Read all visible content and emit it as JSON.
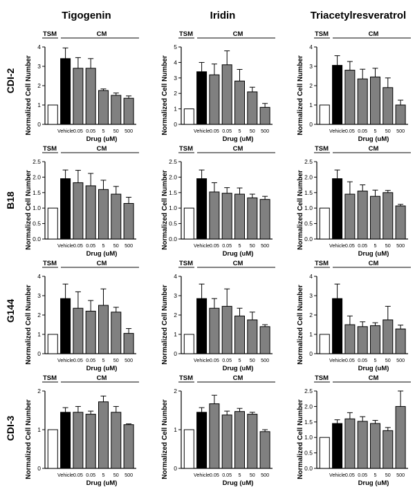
{
  "figure": {
    "columns": [
      "Tigogenin",
      "Iridin",
      "Triacetylresveratrol"
    ],
    "rows": [
      "CDI-2",
      "B18",
      "G144",
      "CDI-3"
    ],
    "ylabel": "Normalized Cell Number",
    "xlabel": "Drug (uM)",
    "group_tsm": "TSM",
    "group_cm": "CM",
    "colors": {
      "tsm": "#ffffff",
      "vehicle": "#000000",
      "drug": "#808080",
      "stroke": "#000000"
    }
  },
  "chart_data": [
    {
      "type": "bar",
      "title": "Tigogenin",
      "row": "CDI-2",
      "categories": [
        "",
        "Vehicle",
        "0.05",
        "0.05",
        "5",
        "50",
        "500"
      ],
      "values": [
        1.0,
        3.4,
        2.9,
        2.9,
        1.75,
        1.5,
        1.35
      ],
      "errors": [
        0,
        0.55,
        0.55,
        0.5,
        0.08,
        0.12,
        0.12
      ],
      "ylim": [
        0,
        4
      ],
      "yticks": [
        "0",
        "1",
        "2",
        "3",
        "4"
      ],
      "ylabel": "Normalized Cell Number",
      "xlabel": "Drug (uM)"
    },
    {
      "type": "bar",
      "title": "Iridin",
      "row": "CDI-2",
      "categories": [
        "",
        "Vehicle",
        "0.05",
        "0.05",
        "5",
        "50",
        "500"
      ],
      "values": [
        1.0,
        3.4,
        3.2,
        3.85,
        2.8,
        2.1,
        1.1
      ],
      "errors": [
        0,
        0.6,
        0.7,
        0.9,
        0.75,
        0.3,
        0.25
      ],
      "ylim": [
        0,
        5
      ],
      "yticks": [
        "0",
        "1",
        "2",
        "3",
        "4",
        "5"
      ],
      "ylabel": "Normalized Cell Number",
      "xlabel": "Drug (uM)"
    },
    {
      "type": "bar",
      "title": "Triacetylresveratrol",
      "row": "CDI-2",
      "categories": [
        "",
        "Vehicle",
        "0.05",
        "0.05",
        "5",
        "50",
        "500"
      ],
      "values": [
        1.0,
        3.05,
        2.8,
        2.35,
        2.45,
        1.9,
        1.0
      ],
      "errors": [
        0,
        0.5,
        0.45,
        0.5,
        0.45,
        0.5,
        0.25
      ],
      "ylim": [
        0,
        4
      ],
      "yticks": [
        "0",
        "1",
        "2",
        "3",
        "4"
      ],
      "ylabel": "Normalized Cell Number",
      "xlabel": "Drug (uM)"
    },
    {
      "type": "bar",
      "title": "Tigogenin",
      "row": "B18",
      "categories": [
        "",
        "Vehicle",
        "0.05",
        "0.05",
        "5",
        "50",
        "500"
      ],
      "values": [
        1.0,
        1.95,
        1.82,
        1.72,
        1.6,
        1.45,
        1.15
      ],
      "errors": [
        0,
        0.28,
        0.4,
        0.4,
        0.3,
        0.25,
        0.2
      ],
      "ylim": [
        0,
        2.5
      ],
      "yticks": [
        "0.0",
        "0.5",
        "1.0",
        "1.5",
        "2.0",
        "2.5"
      ],
      "ylabel": "Normalized Cell Number",
      "xlabel": "Drug (uM)"
    },
    {
      "type": "bar",
      "title": "Iridin",
      "row": "B18",
      "categories": [
        "",
        "Vehicle",
        "0.05",
        "0.05",
        "5",
        "50",
        "500"
      ],
      "values": [
        1.0,
        1.95,
        1.52,
        1.48,
        1.45,
        1.33,
        1.28
      ],
      "errors": [
        0,
        0.28,
        0.3,
        0.18,
        0.2,
        0.12,
        0.1
      ],
      "ylim": [
        0,
        2.5
      ],
      "yticks": [
        "0.0",
        "0.5",
        "1.0",
        "1.5",
        "2.0",
        "2.5"
      ],
      "ylabel": "Normalized Cell Number",
      "xlabel": "Drug (uM)"
    },
    {
      "type": "bar",
      "title": "Triacetylresveratrol",
      "row": "B18",
      "categories": [
        "",
        "Vehicle",
        "0.05",
        "0.05",
        "5",
        "50",
        "500"
      ],
      "values": [
        1.0,
        1.95,
        1.45,
        1.55,
        1.38,
        1.5,
        1.07
      ],
      "errors": [
        0,
        0.28,
        0.4,
        0.2,
        0.2,
        0.07,
        0.05
      ],
      "ylim": [
        0,
        2.5
      ],
      "yticks": [
        "0.0",
        "0.5",
        "1.0",
        "1.5",
        "2.0",
        "2.5"
      ],
      "ylabel": "Normalized Cell Number",
      "xlabel": "Drug (uM)"
    },
    {
      "type": "bar",
      "title": "Tigogenin",
      "row": "G144",
      "categories": [
        "",
        "Vehicle",
        "0.05",
        "0.05",
        "5",
        "50",
        "500"
      ],
      "values": [
        1.0,
        2.85,
        2.35,
        2.2,
        2.5,
        2.15,
        1.05
      ],
      "errors": [
        0,
        0.75,
        0.85,
        0.55,
        0.85,
        0.25,
        0.25
      ],
      "ylim": [
        0,
        4
      ],
      "yticks": [
        "0",
        "1",
        "2",
        "3",
        "4"
      ],
      "ylabel": "Normalized Cell Number",
      "xlabel": "Drug (uM)"
    },
    {
      "type": "bar",
      "title": "Iridin",
      "row": "G144",
      "categories": [
        "",
        "Vehicle",
        "0.05",
        "0.05",
        "5",
        "50",
        "500"
      ],
      "values": [
        1.0,
        2.85,
        2.35,
        2.45,
        1.95,
        1.75,
        1.4
      ],
      "errors": [
        0,
        0.75,
        0.5,
        0.9,
        0.4,
        0.4,
        0.1
      ],
      "ylim": [
        0,
        4
      ],
      "yticks": [
        "0",
        "1",
        "2",
        "3",
        "4"
      ],
      "ylabel": "Normalized Cell Number",
      "xlabel": "Drug (uM)"
    },
    {
      "type": "bar",
      "title": "Triacetylresveratrol",
      "row": "G144",
      "categories": [
        "",
        "Vehicle",
        "0.05",
        "0.05",
        "5",
        "50",
        "500"
      ],
      "values": [
        1.0,
        2.85,
        1.5,
        1.4,
        1.45,
        1.75,
        1.28
      ],
      "errors": [
        0,
        0.75,
        0.45,
        0.25,
        0.15,
        0.7,
        0.2
      ],
      "ylim": [
        0,
        4
      ],
      "yticks": [
        "0",
        "1",
        "2",
        "3",
        "4"
      ],
      "ylabel": "Normalized Cell Number",
      "xlabel": "Drug (uM)"
    },
    {
      "type": "bar",
      "title": "Tigogenin",
      "row": "CDI-3",
      "categories": [
        "",
        "Vehicle",
        "0.05",
        "0.05",
        "5",
        "50",
        "500"
      ],
      "values": [
        1.0,
        1.45,
        1.45,
        1.4,
        1.72,
        1.45,
        1.13
      ],
      "errors": [
        0,
        0.12,
        0.15,
        0.08,
        0.15,
        0.15,
        0.02
      ],
      "ylim": [
        0,
        2
      ],
      "yticks": [
        "0",
        "1",
        "2"
      ],
      "ylabel": "Normalized Cell Number",
      "xlabel": "Drug (uM)"
    },
    {
      "type": "bar",
      "title": "Iridin",
      "row": "CDI-3",
      "categories": [
        "",
        "Vehicle",
        "0.05",
        "0.05",
        "5",
        "50",
        "500"
      ],
      "values": [
        1.0,
        1.45,
        1.67,
        1.38,
        1.47,
        1.4,
        0.95
      ],
      "errors": [
        0,
        0.12,
        0.22,
        0.1,
        0.08,
        0.05,
        0.05
      ],
      "ylim": [
        0,
        2
      ],
      "yticks": [
        "0",
        "1",
        "2"
      ],
      "ylabel": "Normalized Cell Number",
      "xlabel": "Drug (uM)"
    },
    {
      "type": "bar",
      "title": "Triacetylresveratrol",
      "row": "CDI-3",
      "categories": [
        "",
        "Vehicle",
        "0.05",
        "0.05",
        "5",
        "50",
        "500"
      ],
      "values": [
        1.0,
        1.45,
        1.6,
        1.52,
        1.45,
        1.22,
        2.0
      ],
      "errors": [
        0,
        0.12,
        0.2,
        0.15,
        0.1,
        0.1,
        0.5
      ],
      "ylim": [
        0,
        2.5
      ],
      "yticks": [
        "0.0",
        "0.5",
        "1.0",
        "1.5",
        "2.0",
        "2.5"
      ],
      "ylabel": "Normalized Cell Number",
      "xlabel": "Drug (uM)"
    }
  ]
}
